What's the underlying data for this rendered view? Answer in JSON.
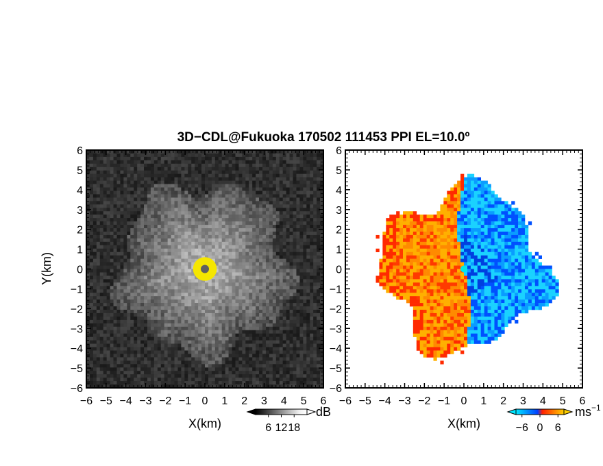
{
  "figure": {
    "title": "3D−CDL@Fukuoka 170502 111453 PPI EL=10.0º"
  },
  "chart_data": [
    {
      "type": "heatmap",
      "panel": "left",
      "quantity": "reflectivity",
      "xlabel": "X(km)",
      "ylabel": "Y(km)",
      "xlim": [
        -6,
        6
      ],
      "ylim": [
        -6,
        6
      ],
      "x_ticks": [
        "−6",
        "−5",
        "−4",
        "−3",
        "−2",
        "−1",
        "0",
        "1",
        "2",
        "3",
        "4",
        "5",
        "6"
      ],
      "y_ticks": [
        "6",
        "5",
        "4",
        "3",
        "2",
        "1",
        "0",
        "−1",
        "−2",
        "−3",
        "−4",
        "−5",
        "−6"
      ],
      "colorbar": {
        "unit": "dB",
        "ticks": [
          "6",
          "12",
          "18"
        ],
        "range": [
          0,
          24
        ],
        "palette": [
          "#000000",
          "#ffffff"
        ]
      },
      "field": {
        "center": [
          0,
          0
        ],
        "echo_radius_km": 4.3,
        "saturated_core_radius_km": 0.6,
        "saturated_color": "#f5e600",
        "center_marker_color": "#606060"
      }
    },
    {
      "type": "heatmap",
      "panel": "right",
      "quantity": "doppler velocity",
      "xlabel": "X(km)",
      "ylabel": "",
      "xlim": [
        -6,
        6
      ],
      "ylim": [
        -6,
        6
      ],
      "x_ticks": [
        "−6",
        "−5",
        "−4",
        "−3",
        "−2",
        "−1",
        "0",
        "1",
        "2",
        "3",
        "4",
        "5",
        "6"
      ],
      "y_ticks": [
        "6",
        "5",
        "4",
        "3",
        "2",
        "1",
        "0",
        "−1",
        "−2",
        "−3",
        "−4",
        "−5",
        "−6"
      ],
      "colorbar": {
        "unit": "ms−1",
        "unit_base": "ms",
        "unit_sup": "−1",
        "ticks": [
          "−6",
          "0",
          "6"
        ],
        "range": [
          -8,
          8
        ],
        "palette": [
          "#00e0ff",
          "#0044ff",
          "#ff2000",
          "#ffe000"
        ]
      },
      "field": {
        "center": [
          0,
          0
        ],
        "echo_radius_km": 4.5,
        "west_half": "positive (away)",
        "east_half": "negative (toward)",
        "center_marker_color": "#00e8e8"
      }
    }
  ]
}
